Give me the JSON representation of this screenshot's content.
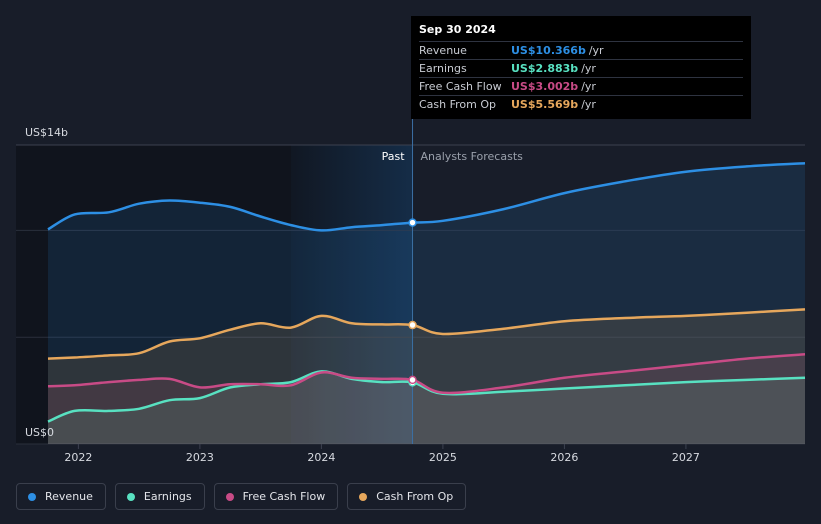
{
  "chart_data": {
    "type": "area",
    "y_axis": {
      "top_label": "US$14b",
      "bottom_label": "US$0",
      "ylim": [
        0,
        14
      ]
    },
    "x_ticks": [
      "2022",
      "2023",
      "2024",
      "2025",
      "2026",
      "2027"
    ],
    "xlim": [
      2021.75,
      2027.98
    ],
    "divider": {
      "x": 2024.75,
      "past_label": "Past",
      "forecast_label": "Analysts Forecasts"
    },
    "highlight_range": [
      2023.75,
      2024.75
    ],
    "grid": true,
    "series": [
      {
        "name": "Revenue",
        "color": "#2d8fe4",
        "x": [
          2021.75,
          2021.97,
          2022.25,
          2022.5,
          2022.75,
          2023.0,
          2023.25,
          2023.5,
          2023.75,
          2024.0,
          2024.25,
          2024.5,
          2024.75,
          2025.0,
          2025.5,
          2026.0,
          2026.5,
          2027.0,
          2027.5,
          2027.98
        ],
        "y": [
          10.05,
          10.75,
          10.85,
          11.25,
          11.4,
          11.3,
          11.1,
          10.65,
          10.25,
          10.0,
          10.15,
          10.25,
          10.366,
          10.45,
          11.0,
          11.75,
          12.3,
          12.75,
          13.0,
          13.15
        ]
      },
      {
        "name": "Earnings",
        "color": "#58e1c1",
        "x": [
          2021.75,
          2021.97,
          2022.25,
          2022.5,
          2022.75,
          2023.0,
          2023.25,
          2023.5,
          2023.75,
          2024.0,
          2024.25,
          2024.5,
          2024.75,
          2025.0,
          2025.5,
          2026.0,
          2026.5,
          2027.0,
          2027.5,
          2027.98
        ],
        "y": [
          1.05,
          1.55,
          1.55,
          1.65,
          2.05,
          2.15,
          2.65,
          2.8,
          2.9,
          3.4,
          3.05,
          2.9,
          2.883,
          2.35,
          2.45,
          2.6,
          2.75,
          2.9,
          3.0,
          3.1
        ]
      },
      {
        "name": "Free Cash Flow",
        "color": "#c84b86",
        "x": [
          2021.75,
          2021.97,
          2022.25,
          2022.5,
          2022.75,
          2023.0,
          2023.25,
          2023.5,
          2023.75,
          2024.0,
          2024.25,
          2024.5,
          2024.75,
          2025.0,
          2025.5,
          2026.0,
          2026.5,
          2027.0,
          2027.5,
          2027.98
        ],
        "y": [
          2.7,
          2.75,
          2.9,
          3.0,
          3.05,
          2.65,
          2.8,
          2.8,
          2.75,
          3.35,
          3.1,
          3.05,
          3.002,
          2.4,
          2.65,
          3.1,
          3.4,
          3.7,
          4.0,
          4.2
        ]
      },
      {
        "name": "Cash From Op",
        "color": "#e6a75c",
        "x": [
          2021.75,
          2021.97,
          2022.25,
          2022.5,
          2022.75,
          2023.0,
          2023.25,
          2023.5,
          2023.75,
          2024.0,
          2024.25,
          2024.5,
          2024.75,
          2025.0,
          2025.5,
          2026.0,
          2026.5,
          2027.0,
          2027.5,
          2027.98
        ],
        "y": [
          4.0,
          4.05,
          4.15,
          4.25,
          4.8,
          4.95,
          5.35,
          5.65,
          5.45,
          6.0,
          5.65,
          5.6,
          5.569,
          5.15,
          5.4,
          5.75,
          5.9,
          6.0,
          6.15,
          6.3
        ]
      }
    ],
    "tooltip": {
      "date": "Sep 30 2024",
      "rows": [
        {
          "label": "Revenue",
          "value": "US$10.366b",
          "unit": "/yr",
          "color": "#2d8fe4"
        },
        {
          "label": "Earnings",
          "value": "US$2.883b",
          "unit": "/yr",
          "color": "#58e1c1"
        },
        {
          "label": "Free Cash Flow",
          "value": "US$3.002b",
          "unit": "/yr",
          "color": "#c84b86"
        },
        {
          "label": "Cash From Op",
          "value": "US$5.569b",
          "unit": "/yr",
          "color": "#e6a75c"
        }
      ]
    },
    "legend": [
      {
        "label": "Revenue",
        "color": "#2d8fe4"
      },
      {
        "label": "Earnings",
        "color": "#58e1c1"
      },
      {
        "label": "Free Cash Flow",
        "color": "#c84b86"
      },
      {
        "label": "Cash From Op",
        "color": "#e6a75c"
      }
    ]
  }
}
